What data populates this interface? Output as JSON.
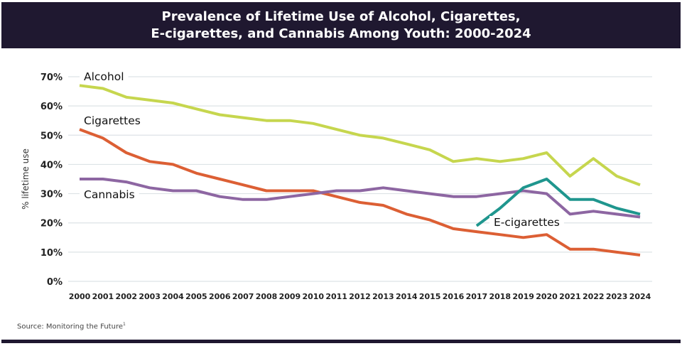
{
  "title": {
    "line1": "Prevalence of Lifetime Use of Alcohol, Cigarettes,",
    "line2": "E-cigarettes, and Cannabis Among Youth: 2000-2024"
  },
  "source": {
    "text": "Source: Monitoring the Future",
    "footnote": "1"
  },
  "colors": {
    "titlebar": "#1f1830",
    "alcohol": "#c6d64e",
    "cigarettes": "#dc5f34",
    "cannabis": "#8d66a2",
    "ecigarettes": "#1f968e",
    "grid": "#dde3e6"
  },
  "chart_data": {
    "type": "line",
    "title": "Prevalence of Lifetime Use of Alcohol, Cigarettes, E-cigarettes, and Cannabis Among Youth: 2000-2024",
    "xlabel": "",
    "ylabel": "% lifetime use",
    "ylim": [
      0,
      70
    ],
    "yticks": [
      "0%",
      "10%",
      "20%",
      "30%",
      "40%",
      "50%",
      "60%",
      "70%"
    ],
    "grid": true,
    "x": [
      2000,
      2001,
      2002,
      2003,
      2004,
      2005,
      2006,
      2007,
      2008,
      2009,
      2010,
      2011,
      2012,
      2013,
      2014,
      2015,
      2016,
      2017,
      2018,
      2019,
      2020,
      2021,
      2022,
      2023,
      2024
    ],
    "series": [
      {
        "name": "Alcohol",
        "color": "#c6d64e",
        "values": [
          67,
          66,
          63,
          62,
          61,
          59,
          57,
          56,
          55,
          55,
          54,
          52,
          50,
          49,
          47,
          45,
          41,
          42,
          41,
          42,
          44,
          36,
          42,
          36,
          33
        ]
      },
      {
        "name": "Cigarettes",
        "color": "#dc5f34",
        "values": [
          52,
          49,
          44,
          41,
          40,
          37,
          35,
          33,
          31,
          31,
          31,
          29,
          27,
          26,
          23,
          21,
          18,
          17,
          16,
          15,
          16,
          11,
          11,
          10,
          9
        ]
      },
      {
        "name": "Cannabis",
        "color": "#8d66a2",
        "values": [
          35,
          35,
          34,
          32,
          31,
          31,
          29,
          28,
          28,
          29,
          30,
          31,
          31,
          32,
          31,
          30,
          29,
          29,
          30,
          31,
          30,
          23,
          24,
          23,
          22
        ]
      },
      {
        "name": "E-cigarettes",
        "color": "#1f968e",
        "values": [
          null,
          null,
          null,
          null,
          null,
          null,
          null,
          null,
          null,
          null,
          null,
          null,
          null,
          null,
          null,
          null,
          null,
          19,
          25,
          32,
          35,
          28,
          28,
          25,
          23
        ]
      }
    ]
  }
}
